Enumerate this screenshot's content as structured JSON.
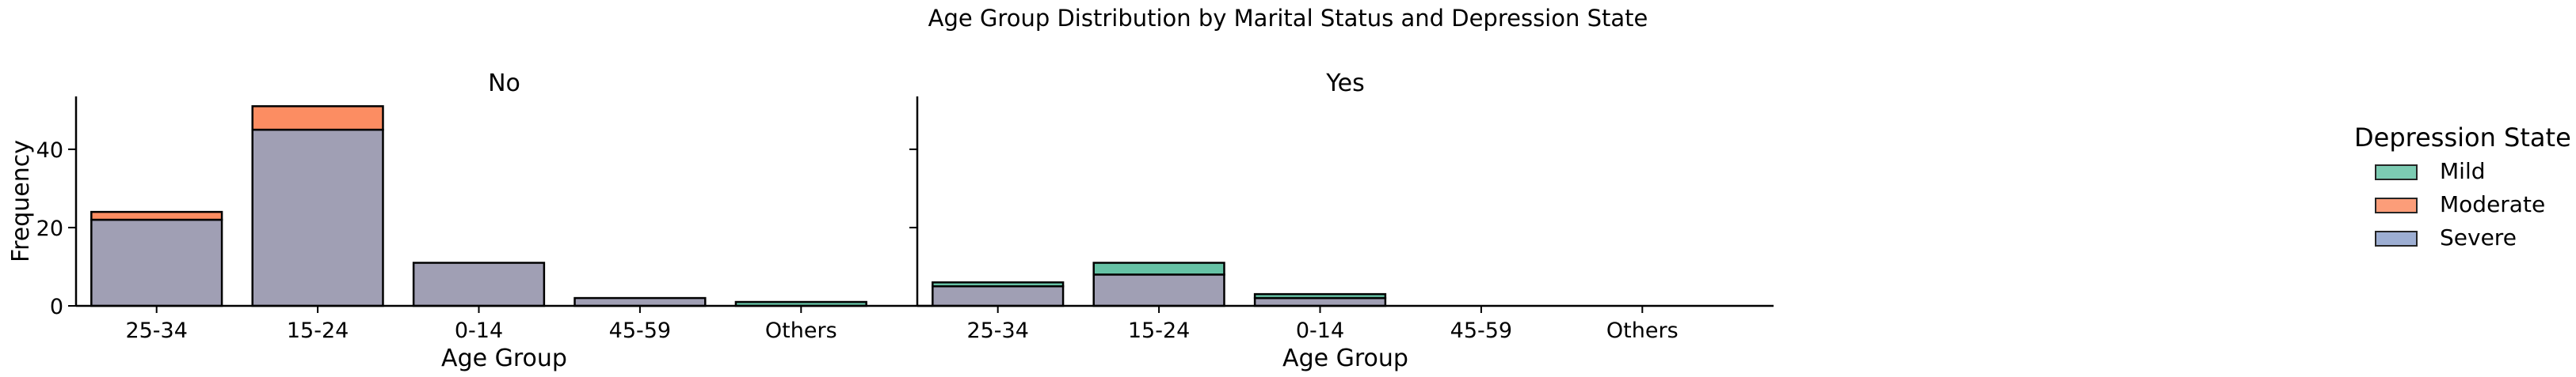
{
  "chart_data": {
    "type": "bar",
    "stacked": true,
    "overlapping_bars": true,
    "suptitle": "Age Group Distribution by Marital Status and Depression State",
    "categories": [
      "25-34",
      "15-24",
      "0-14",
      "45-59",
      "Others"
    ],
    "xlabel": "Age Group",
    "ylabel": "Frequency",
    "ylim": [
      0,
      53.5
    ],
    "yticks": [
      0,
      20,
      40
    ],
    "grid": false,
    "legend": {
      "title": "Depression State",
      "placement": "right",
      "entries": [
        {
          "name": "Mild",
          "color": "#66c2a5"
        },
        {
          "name": "Moderate",
          "color": "#fc8d62"
        },
        {
          "name": "Severe",
          "color": "#8da0cb"
        }
      ]
    },
    "panels": [
      {
        "title": "No",
        "series": [
          {
            "name": "Mild",
            "values": [
              0,
              0,
              0,
              0,
              1
            ]
          },
          {
            "name": "Moderate",
            "values": [
              2,
              6,
              0,
              0,
              0
            ]
          },
          {
            "name": "Severe",
            "values": [
              22,
              45,
              11,
              2,
              0
            ]
          }
        ]
      },
      {
        "title": "Yes",
        "series": [
          {
            "name": "Mild",
            "values": [
              1,
              3,
              1,
              0,
              0
            ]
          },
          {
            "name": "Moderate",
            "values": [
              0,
              0,
              0,
              0,
              0
            ]
          },
          {
            "name": "Severe",
            "values": [
              5,
              8,
              2,
              0,
              0
            ]
          }
        ]
      }
    ]
  }
}
